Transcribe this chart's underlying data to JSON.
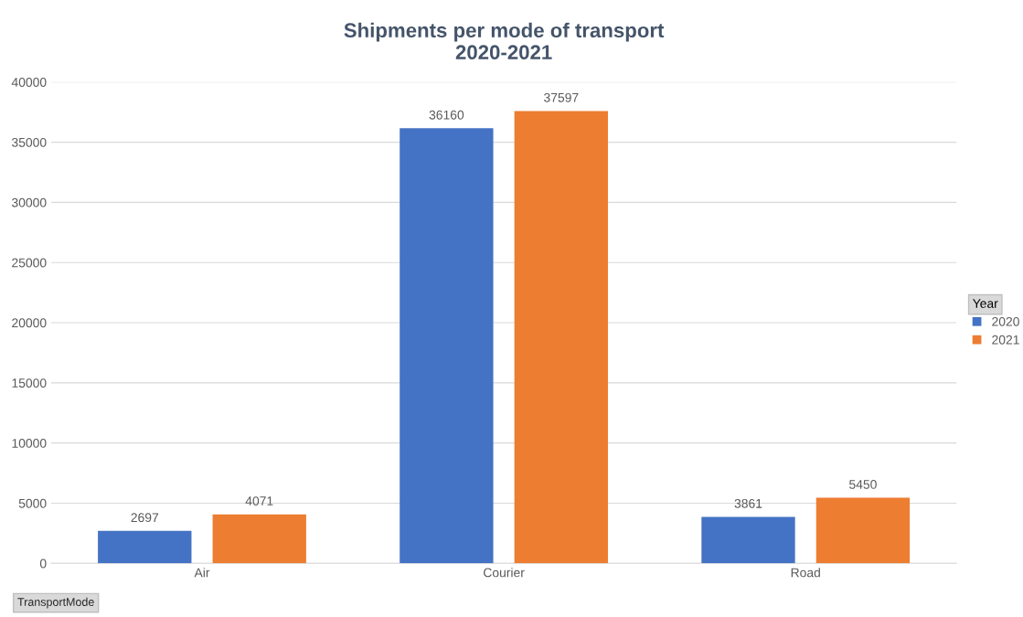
{
  "chart_data": {
    "type": "bar",
    "title": "Shipments per mode of transport\n2020-2021",
    "xlabel": "TransportMode",
    "legend_title": "Year",
    "categories": [
      "Air",
      "Courier",
      "Road"
    ],
    "series": [
      {
        "name": "2020",
        "color": "#4472c4",
        "values": [
          2697,
          36160,
          3861
        ]
      },
      {
        "name": "2021",
        "color": "#ed7d31",
        "values": [
          4071,
          37597,
          5450
        ]
      }
    ],
    "ylim": [
      0,
      40000
    ],
    "yticks": [
      0,
      5000,
      10000,
      15000,
      20000,
      25000,
      30000,
      35000,
      40000
    ],
    "grid": "y",
    "legend": "right",
    "data_labels": true
  }
}
